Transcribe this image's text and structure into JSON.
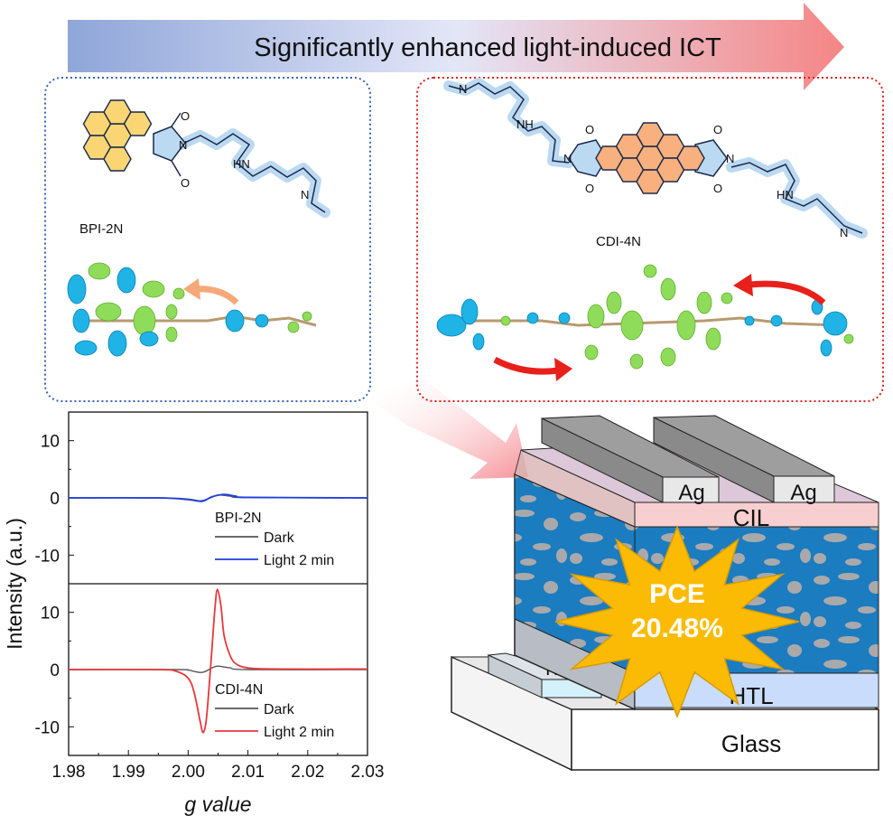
{
  "banner": {
    "title": "Significantly enhanced light-induced ICT",
    "color_start": "#8fa6d9",
    "color_end": "#f58585"
  },
  "molecules": {
    "bpi": {
      "name": "BPI-2N",
      "atoms": {
        "o1": "O",
        "n1": "N",
        "o2": "O",
        "hn": "HN",
        "n2": "N"
      }
    },
    "cdi": {
      "name": "CDI-4N",
      "atoms": {
        "n_top": "N",
        "nh": "NH",
        "o1": "O",
        "n_left": "N",
        "o2": "O",
        "o3": "O",
        "n_right": "N",
        "o4": "O",
        "hn": "HN",
        "n_bottom": "N"
      }
    }
  },
  "device": {
    "layers": {
      "electrode_1": "Ag",
      "electrode_2": "Ag",
      "cil": "CIL",
      "htl": "HTL",
      "ito": "ITO",
      "substrate": "Glass"
    },
    "pce_label": "PCE",
    "pce_value": "20.48%"
  },
  "chart_data": {
    "type": "line",
    "xlabel": "g value",
    "ylabel": "Intensity (a.u.)",
    "xlim": [
      1.98,
      2.03
    ],
    "xticks": [
      "1.98",
      "1.99",
      "2.00",
      "2.01",
      "2.02",
      "2.03"
    ],
    "panels": [
      {
        "name": "BPI-2N",
        "ylim": [
          -15,
          15
        ],
        "yticks": [
          "10",
          "0",
          "-10"
        ],
        "series": [
          {
            "name": "Dark",
            "color": "#555555",
            "x": [
              1.98,
              1.995,
              2.0,
              2.002,
              2.0035,
              2.005,
              2.007,
              2.01,
              2.03
            ],
            "y": [
              0,
              0,
              -0.2,
              -0.5,
              -0.1,
              0.5,
              0.3,
              0.05,
              0
            ]
          },
          {
            "name": "Light 2 min",
            "color": "#1f3fe0",
            "x": [
              1.98,
              1.995,
              2.0,
              2.0023,
              2.004,
              2.006,
              2.008,
              2.01,
              2.03
            ],
            "y": [
              0,
              0,
              -0.3,
              -0.6,
              0.2,
              0.6,
              0.3,
              0.1,
              0
            ]
          }
        ]
      },
      {
        "name": "CDI-4N",
        "ylim": [
          -15,
          15
        ],
        "yticks": [
          "10",
          "0",
          "-10"
        ],
        "series": [
          {
            "name": "Dark",
            "color": "#555555",
            "x": [
              1.98,
              1.998,
              2.0,
              2.0023,
              2.004,
              2.005,
              2.007,
              2.01,
              2.03
            ],
            "y": [
              0,
              0,
              -0.1,
              -0.5,
              0.3,
              0.6,
              0.3,
              0,
              0
            ]
          },
          {
            "name": "Light 2 min",
            "color": "#e8383b",
            "x": [
              1.98,
              1.995,
              1.998,
              2.0,
              2.001,
              2.002,
              2.0025,
              2.003,
              2.0035,
              2.004,
              2.0045,
              2.0049,
              2.0055,
              2.006,
              2.007,
              2.008,
              2.01,
              2.015,
              2.03
            ],
            "y": [
              0,
              0,
              -0.3,
              -1.5,
              -4,
              -9,
              -11,
              -9,
              -3,
              4,
              11,
              14,
              11,
              6,
              2.5,
              1,
              0.3,
              0.1,
              0.1
            ]
          }
        ]
      }
    ]
  }
}
